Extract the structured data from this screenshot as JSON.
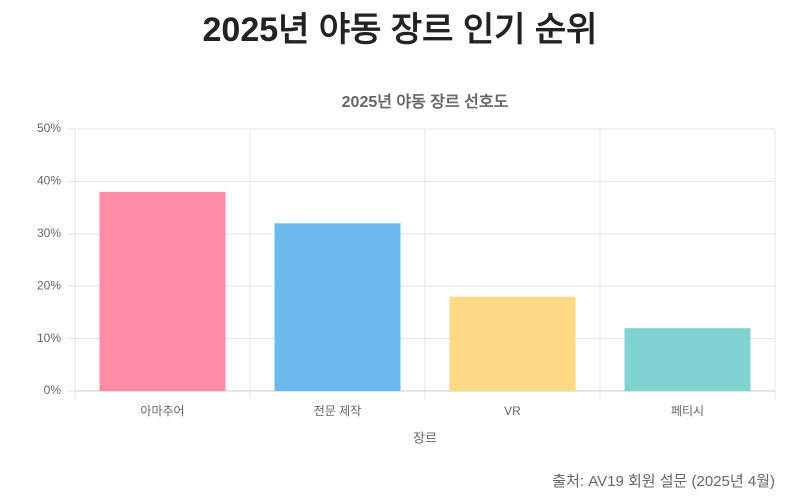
{
  "title": "2025년 야동 장르 인기 순위",
  "source": "출처: AV19 회원 설문 (2025년 4월)",
  "chart_data": {
    "type": "bar",
    "title": "2025년 야동 장르 선호도",
    "x_label": "장르",
    "categories": [
      "아마추어",
      "전문 제작",
      "VR",
      "페티시"
    ],
    "values": [
      38,
      32,
      18,
      12
    ],
    "colors": [
      "#ff8ba4",
      "#6cb9ed",
      "#ffd985",
      "#80d3d1"
    ],
    "ylim": [
      0,
      50
    ],
    "yticks": [
      {
        "value": 0,
        "label": "0%"
      },
      {
        "value": 10,
        "label": "10%"
      },
      {
        "value": 20,
        "label": "20%"
      },
      {
        "value": 30,
        "label": "30%"
      },
      {
        "value": 40,
        "label": "40%"
      },
      {
        "value": 50,
        "label": "50%"
      }
    ],
    "grid": true
  }
}
